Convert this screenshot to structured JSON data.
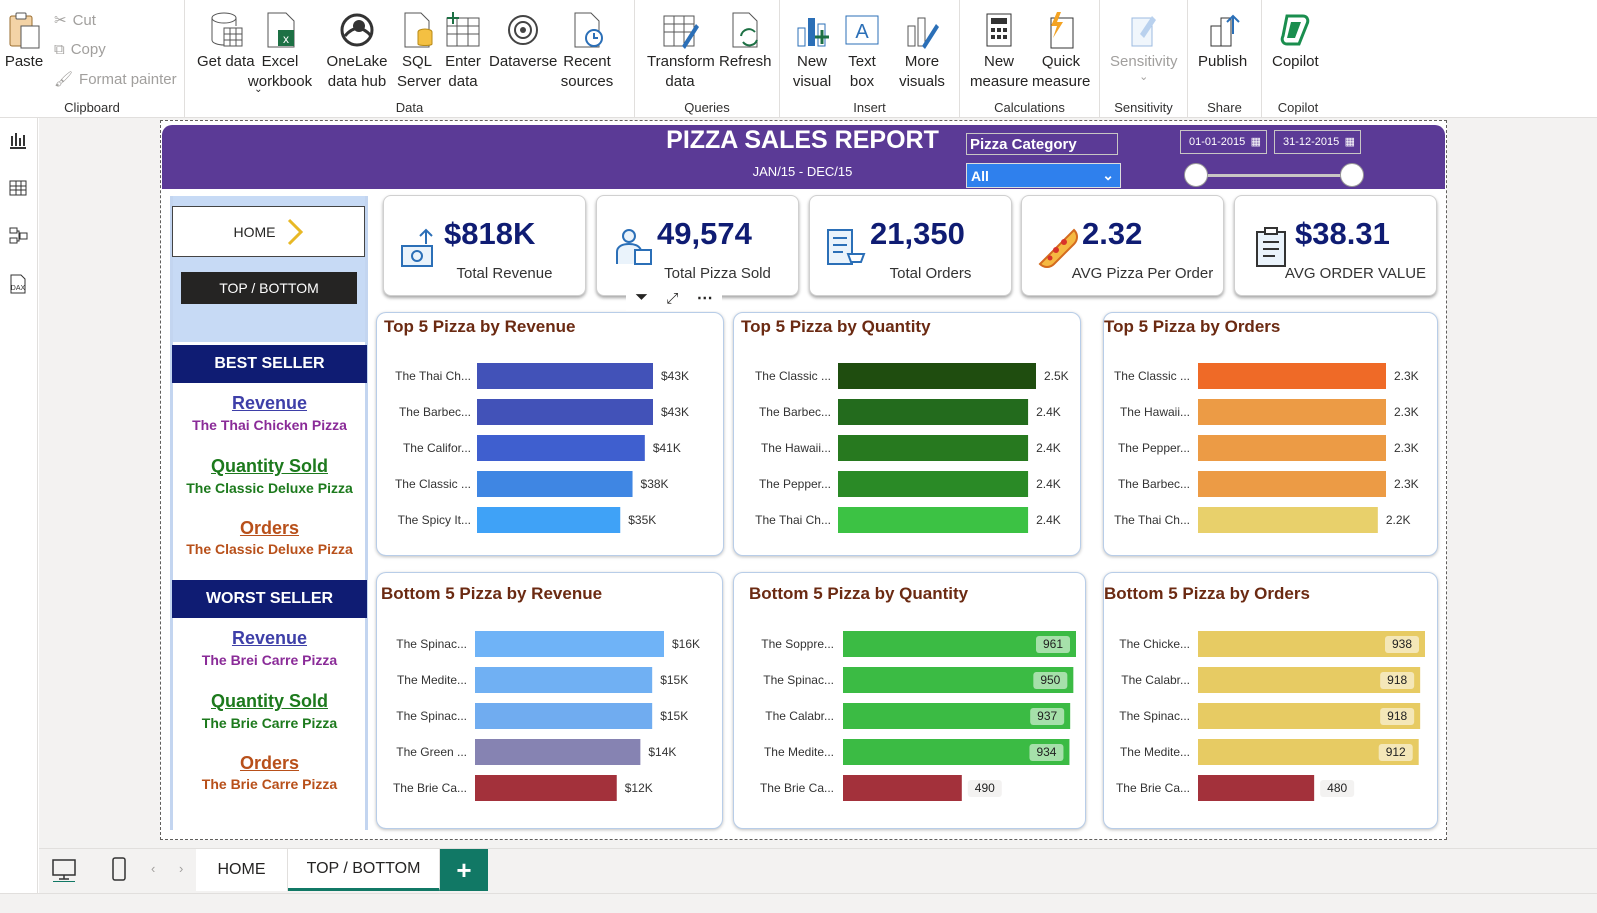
{
  "ribbon": {
    "clipboard": {
      "label": "Clipboard",
      "paste": "Paste",
      "cut": "Cut",
      "copy": "Copy",
      "format_painter": "Format painter"
    },
    "data": {
      "label": "Data",
      "get_data": "Get data",
      "excel": "Excel workbook",
      "onelake": "OneLake data hub",
      "sql": "SQL Server",
      "enter_data": "Enter data",
      "dataverse": "Dataverse",
      "recent": "Recent sources"
    },
    "queries": {
      "label": "Queries",
      "transform": "Transform data",
      "refresh": "Refresh"
    },
    "insert": {
      "label": "Insert",
      "new_visual": "New visual",
      "text_box": "Text box",
      "more_visuals": "More visuals"
    },
    "calculations": {
      "label": "Calculations",
      "new_measure": "New measure",
      "quick_measure": "Quick measure"
    },
    "sensitivity": {
      "label": "Sensitivity",
      "button": "Sensitivity"
    },
    "share": {
      "label": "Share",
      "publish": "Publish"
    },
    "copilot": {
      "label": "Copilot",
      "button": "Copilot"
    }
  },
  "report": {
    "title": "PIZZA SALES REPORT",
    "subtitle": "JAN/15 - DEC/15",
    "slicer_label": "Pizza Category",
    "slicer_value": "All",
    "date_start": "01-01-2015",
    "date_end": "31-12-2015"
  },
  "nav": {
    "home": "HOME",
    "top_bottom": "TOP / BOTTOM"
  },
  "best": {
    "header": "BEST SELLER",
    "revenue_title": "Revenue",
    "revenue_value": "The Thai Chicken Pizza",
    "qty_title": "Quantity Sold",
    "qty_value": "The Classic Deluxe Pizza",
    "orders_title": "Orders",
    "orders_value": "The Classic Deluxe Pizza"
  },
  "worst": {
    "header": "WORST SELLER",
    "revenue_title": "Revenue",
    "revenue_value": "The Brei Carre Pizza",
    "qty_title": "Quantity Sold",
    "qty_value": "The Brie Carre Pizza",
    "orders_title": "Orders",
    "orders_value": "The Brie Carre Pizza"
  },
  "kpis": [
    {
      "value": "$818K",
      "label": "Total Revenue",
      "icon": "money-icon"
    },
    {
      "value": "49,574",
      "label": "Total Pizza Sold",
      "icon": "delivery-icon"
    },
    {
      "value": "21,350",
      "label": "Total Orders",
      "icon": "order-list-icon"
    },
    {
      "value": "2.32",
      "label": "AVG Pizza Per Order",
      "icon": "pizza-slice-icon"
    },
    {
      "value": "$38.31",
      "label": "AVG ORDER VALUE",
      "icon": "clipboard-icon"
    }
  ],
  "chart_data": [
    {
      "type": "bar",
      "title": "Top 5 Pizza by Revenue",
      "categories": [
        "The Thai Ch...",
        "The Barbec...",
        "The Califor...",
        "The Classic ...",
        "The Spicy It..."
      ],
      "values": [
        43,
        43,
        41,
        38,
        35
      ],
      "labels": [
        "$43K",
        "$43K",
        "$41K",
        "$38K",
        "$35K"
      ],
      "colors": [
        "#4252b8",
        "#4252b8",
        "#3f5fcf",
        "#3f86e3",
        "#3fa2f7"
      ],
      "label_inside": false
    },
    {
      "type": "bar",
      "title": "Top 5 Pizza by Quantity",
      "categories": [
        "The Classic ...",
        "The Barbec...",
        "The Hawaii...",
        "The Pepper...",
        "The Thai Ch..."
      ],
      "values": [
        2.5,
        2.4,
        2.4,
        2.4,
        2.4
      ],
      "labels": [
        "2.5K",
        "2.4K",
        "2.4K",
        "2.4K",
        "2.4K"
      ],
      "colors": [
        "#1f4d0f",
        "#236b1d",
        "#27791f",
        "#2a8a26",
        "#3cc244"
      ],
      "label_inside": false
    },
    {
      "type": "bar",
      "title": "Top 5 Pizza by Orders",
      "categories": [
        "The Classic ...",
        "The Hawaii...",
        "The Pepper...",
        "The Barbec...",
        "The Thai Ch..."
      ],
      "values": [
        2.3,
        2.3,
        2.3,
        2.3,
        2.2
      ],
      "labels": [
        "2.3K",
        "2.3K",
        "2.3K",
        "2.3K",
        "2.2K"
      ],
      "colors": [
        "#ef6a27",
        "#ec9b45",
        "#ec9b45",
        "#ec9b45",
        "#e8d06b"
      ],
      "label_inside": false
    },
    {
      "type": "bar",
      "title": "Bottom 5 Pizza by Revenue",
      "categories": [
        "The Spinac...",
        "The Medite...",
        "The Spinac...",
        "The Green ...",
        "The Brie Ca..."
      ],
      "values": [
        16,
        15,
        15,
        14,
        12
      ],
      "labels": [
        "$16K",
        "$15K",
        "$15K",
        "$14K",
        "$12K"
      ],
      "colors": [
        "#6fb3f7",
        "#70b0f3",
        "#70acf0",
        "#8683b2",
        "#a3313b"
      ],
      "label_inside": false
    },
    {
      "type": "bar",
      "title": "Bottom 5 Pizza by Quantity",
      "categories": [
        "The Soppre...",
        "The Spinac...",
        "The Calabr...",
        "The Medite...",
        "The Brie Ca..."
      ],
      "values": [
        961,
        950,
        937,
        934,
        490
      ],
      "labels": [
        "961",
        "950",
        "937",
        "934",
        "490"
      ],
      "colors": [
        "#3bbb44",
        "#3bbb44",
        "#3bbb44",
        "#3bbb44",
        "#a3313b"
      ],
      "label_inside": true
    },
    {
      "type": "bar",
      "title": "Bottom 5 Pizza by Orders",
      "categories": [
        "The Chicke...",
        "The Calabr...",
        "The Spinac...",
        "The Medite...",
        "The Brie Ca..."
      ],
      "values": [
        938,
        918,
        918,
        912,
        480
      ],
      "labels": [
        "938",
        "918",
        "918",
        "912",
        "480"
      ],
      "colors": [
        "#e7cb63",
        "#e7cb63",
        "#e7cb63",
        "#e7cb63",
        "#a3313b"
      ],
      "label_inside": true
    }
  ],
  "pages": {
    "home": "HOME",
    "top_bottom": "TOP / BOTTOM",
    "add": "+"
  }
}
